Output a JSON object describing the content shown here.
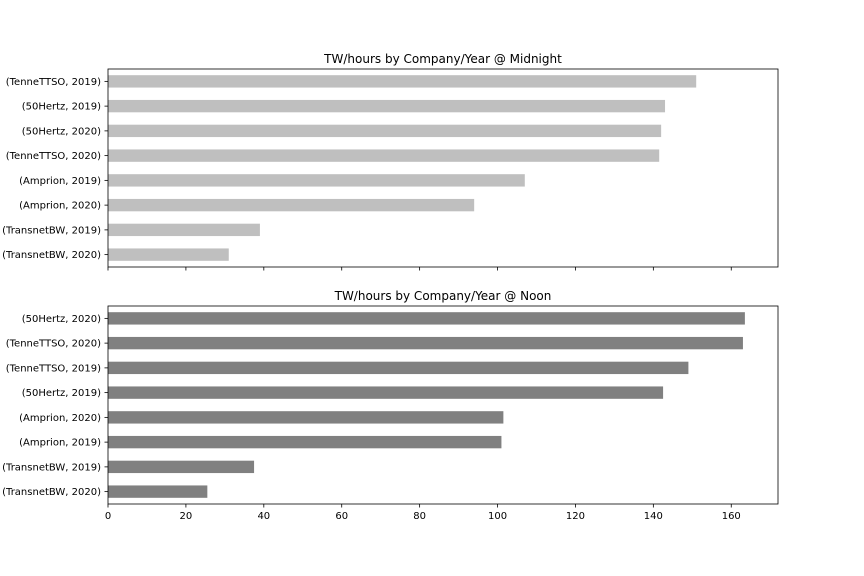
{
  "chart_data": [
    {
      "type": "bar",
      "orientation": "horizontal",
      "title": "TW/hours by Company/Year @ Midnight",
      "categories": [
        "(TenneTTSO, 2019)",
        "(50Hertz, 2019)",
        "(50Hertz, 2020)",
        "(TenneTTSO, 2020)",
        "(Amprion, 2019)",
        "(Amprion, 2020)",
        "(TransnetBW, 2019)",
        "(TransnetBW, 2020)"
      ],
      "values": [
        151,
        143,
        142,
        141.5,
        107,
        94,
        39,
        31
      ],
      "xlim": [
        0,
        172
      ],
      "xticks": [
        0,
        20,
        40,
        60,
        80,
        100,
        120,
        140,
        160
      ],
      "show_xtick_labels": false,
      "bar_color": "#bfbfbf",
      "grid": false
    },
    {
      "type": "bar",
      "orientation": "horizontal",
      "title": "TW/hours by Company/Year @ Noon",
      "categories": [
        "(50Hertz, 2020)",
        "(TenneTTSO, 2020)",
        "(TenneTTSO, 2019)",
        "(50Hertz, 2019)",
        "(Amprion, 2020)",
        "(Amprion, 2019)",
        "(TransnetBW, 2019)",
        "(TransnetBW, 2020)"
      ],
      "values": [
        163.5,
        163,
        149,
        142.5,
        101.5,
        101,
        37.5,
        25.5
      ],
      "xlim": [
        0,
        172
      ],
      "xticks": [
        0,
        20,
        40,
        60,
        80,
        100,
        120,
        140,
        160
      ],
      "show_xtick_labels": true,
      "bar_color": "#808080",
      "grid": false
    }
  ]
}
